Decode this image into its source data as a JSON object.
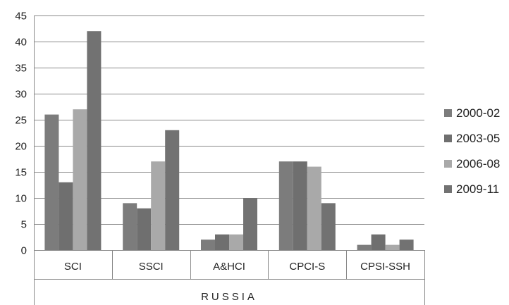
{
  "chart_data": {
    "type": "bar",
    "categories": [
      "SCI",
      "SSCI",
      "A&HCI",
      "CPCI-S",
      "CPSI-SSH"
    ],
    "group_label": "RUSSIA",
    "series": [
      {
        "name": "2000-02",
        "color": "#7c7c7c",
        "values": [
          26,
          9,
          2,
          17,
          1
        ]
      },
      {
        "name": "2003-05",
        "color": "#6f6f6f",
        "values": [
          13,
          8,
          3,
          17,
          3
        ]
      },
      {
        "name": "2006-08",
        "color": "#a9a9a9",
        "values": [
          27,
          17,
          3,
          16,
          1
        ]
      },
      {
        "name": "2009-11",
        "color": "#727272",
        "values": [
          42,
          23,
          10,
          9,
          2
        ]
      }
    ],
    "ylim": [
      0,
      45
    ],
    "yticks": [
      0,
      5,
      10,
      15,
      20,
      25,
      30,
      35,
      40,
      45
    ],
    "grid": true,
    "legend_position": "right",
    "title": "",
    "xlabel": "",
    "ylabel": ""
  }
}
